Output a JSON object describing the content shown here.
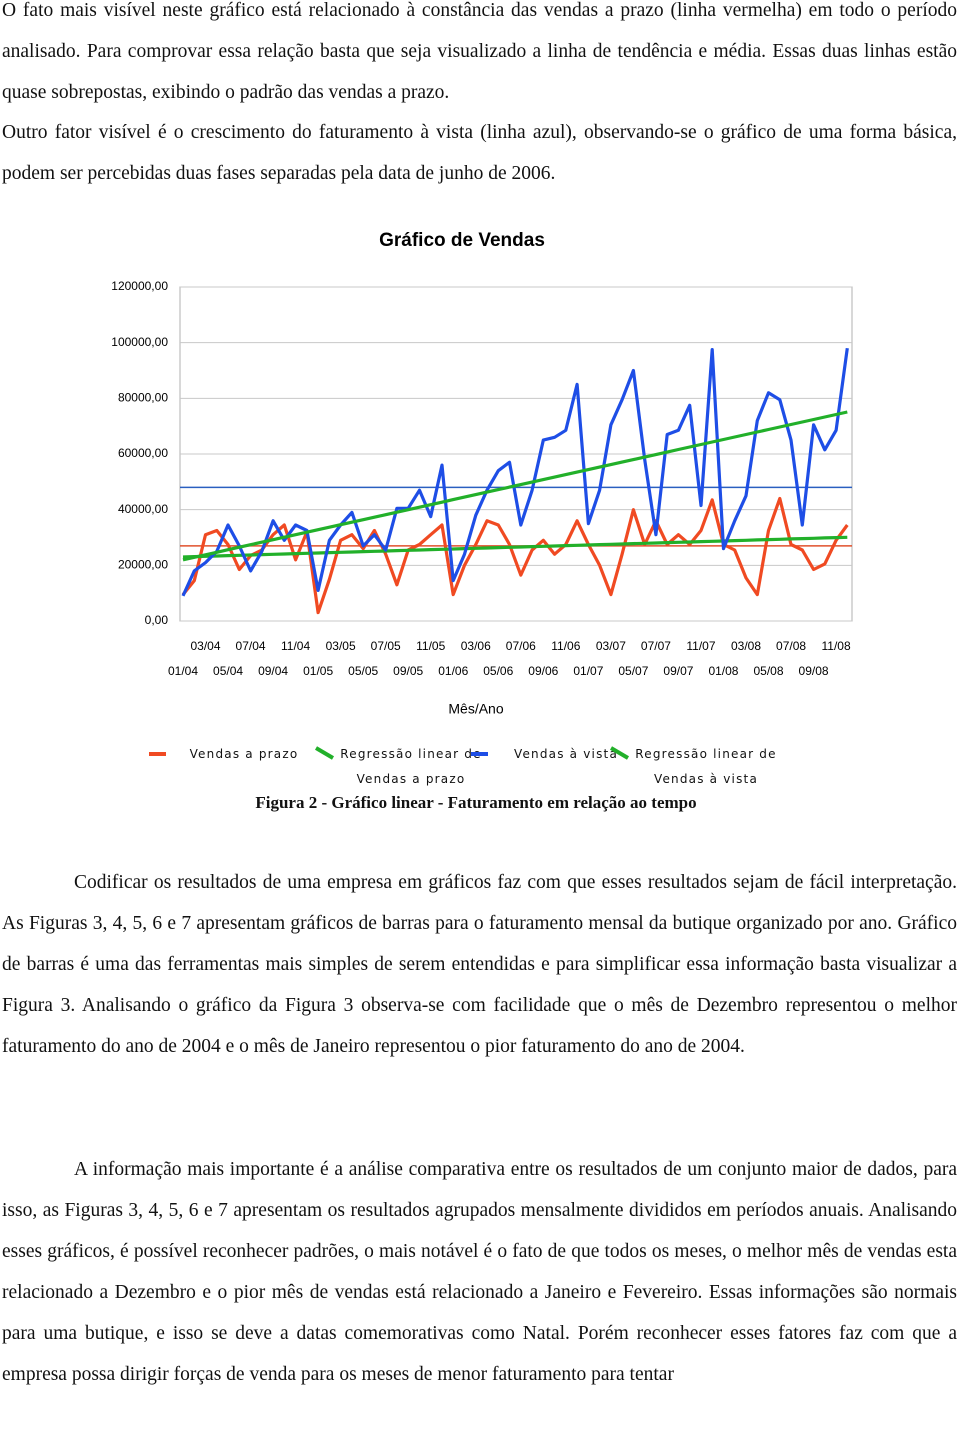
{
  "document": {
    "intro": [
      "O fato mais visível neste gráfico está relacionado à constância das vendas a prazo (linha vermelha) em todo o período analisado. Para comprovar essa relação basta que seja visualizado a linha de tendência e média. Essas duas linhas estão quase sobrepostas, exibindo o padrão das vendas a prazo.",
      "Outro fator visível é o crescimento do faturamento à vista (linha azul), observando-se o gráfico de uma forma básica, podem ser percebidas duas fases separadas pela data de junho de 2006."
    ],
    "caption": "Figura 2 - Gráfico linear - Faturamento em relação ao tempo",
    "paragraphs": [
      "Codificar os resultados de uma empresa em gráficos faz com que esses resultados sejam de fácil interpretação. As Figuras 3, 4, 5, 6 e 7 apresentam gráficos de barras para o faturamento mensal da butique organizado por ano. Gráfico de barras é uma das ferramentas mais simples de serem entendidas e para simplificar essa informação basta visualizar a Figura 3. Analisando o gráfico da Figura 3 observa-se com facilidade que o mês de Dezembro representou o melhor faturamento do ano de 2004 e o mês de Janeiro representou o pior faturamento do ano de 2004.",
      "A informação mais importante é a análise comparativa entre os resultados de um conjunto maior de dados, para isso, as Figuras 3, 4, 5, 6 e 7 apresentam os resultados agrupados mensalmente divididos em períodos anuais. Analisando esses gráficos, é possível reconhecer padrões, o mais notável é o fato de que todos os meses, o melhor mês de vendas esta relacionado a Dezembro e o pior mês de vendas está relacionado a Janeiro e Fevereiro. Essas informações são normais para uma butique, e isso se deve a datas comemorativas como Natal. Porém reconhecer esses fatores faz com que a empresa possa dirigir forças de venda para os meses de menor faturamento para tentar"
    ]
  },
  "chart_data": {
    "type": "line",
    "title": "Gráfico de Vendas",
    "x_label": "Mês/Ano",
    "categories": [
      "01/04",
      null,
      "03/04",
      null,
      "05/04",
      null,
      "07/04",
      null,
      "09/04",
      null,
      "11/04",
      null,
      "01/05",
      null,
      "03/05",
      null,
      "05/05",
      null,
      "07/05",
      null,
      "09/05",
      null,
      "11/05",
      null,
      "01/06",
      null,
      "03/06",
      null,
      "05/06",
      null,
      "07/06",
      null,
      "09/06",
      null,
      "11/06",
      null,
      "01/07",
      null,
      "03/07",
      null,
      "05/07",
      null,
      "07/07",
      null,
      "09/07",
      null,
      "11/07",
      null,
      "01/08",
      null,
      "03/08",
      null,
      "05/08",
      null,
      "07/08",
      null,
      "09/08",
      null,
      "11/08",
      null
    ],
    "ylim": [
      0,
      120000
    ],
    "yticks": [
      {
        "value": 0,
        "label": "0,00"
      },
      {
        "value": 20000,
        "label": "20000,00"
      },
      {
        "value": 40000,
        "label": "40000,00"
      },
      {
        "value": 60000,
        "label": "60000,00"
      },
      {
        "value": 80000,
        "label": "80000,00"
      },
      {
        "value": 100000,
        "label": "100000,00"
      },
      {
        "value": 120000,
        "label": "120000,00"
      }
    ],
    "grid": true,
    "reference_lines": [
      {
        "value": 48000,
        "color": "#2a5fc0"
      },
      {
        "value": 27000,
        "color": "#e0502c"
      }
    ],
    "series": [
      {
        "name": "Vendas a prazo",
        "color": "#f04a22",
        "values": [
          9500,
          14500,
          31000,
          32500,
          27500,
          18500,
          23500,
          25500,
          31000,
          34500,
          22000,
          32000,
          3000,
          15000,
          29000,
          31000,
          26000,
          32500,
          24000,
          13000,
          25500,
          27500,
          31000,
          34500,
          9500,
          20000,
          27500,
          36000,
          34500,
          27500,
          16500,
          25500,
          29000,
          24000,
          27500,
          36000,
          27500,
          20000,
          9500,
          24000,
          40000,
          27500,
          36000,
          27500,
          31000,
          27500,
          32500,
          43500,
          27500,
          25500,
          15500,
          9500,
          32500,
          44000,
          27500,
          25500,
          18500,
          20500,
          29000,
          34500
        ]
      },
      {
        "name": "Regressão linear de Vendas a prazo",
        "color": "#22b02a",
        "values": [
          23000,
          23120,
          23240,
          23360,
          23480,
          23600,
          23720,
          23840,
          23960,
          24080,
          24200,
          24320,
          24440,
          24560,
          24680,
          24800,
          24920,
          25040,
          25160,
          25280,
          25400,
          25520,
          25640,
          25760,
          25880,
          26000,
          26120,
          26240,
          26360,
          26480,
          26600,
          26720,
          26840,
          26960,
          27080,
          27200,
          27320,
          27440,
          27560,
          27680,
          27800,
          27920,
          28040,
          28160,
          28280,
          28400,
          28520,
          28640,
          28760,
          28880,
          29000,
          29120,
          29240,
          29360,
          29480,
          29600,
          29720,
          29840,
          29960,
          30080
        ]
      },
      {
        "name": "Vendas à vista",
        "color": "#1e4ee6",
        "values": [
          9000,
          18000,
          21000,
          25000,
          34500,
          27000,
          18000,
          25000,
          36000,
          29000,
          34500,
          32500,
          11000,
          29000,
          34500,
          39000,
          27000,
          31000,
          25500,
          40500,
          40500,
          47000,
          37500,
          56000,
          14500,
          24000,
          38000,
          47000,
          54000,
          57000,
          34500,
          47000,
          65000,
          66000,
          68500,
          85000,
          35000,
          47000,
          70500,
          79500,
          90000,
          58000,
          31000,
          67000,
          68500,
          77500,
          41500,
          97500,
          26000,
          36000,
          45000,
          72000,
          82000,
          79500,
          65000,
          34500,
          70500,
          61500,
          68500,
          98000
        ]
      },
      {
        "name": "Regressão linear de Vendas à vista",
        "color": "#22b02a",
        "values": [
          22000,
          22900,
          23800,
          24700,
          25600,
          26500,
          27400,
          28300,
          29200,
          30100,
          31000,
          31900,
          32800,
          33700,
          34600,
          35500,
          36400,
          37300,
          38200,
          39100,
          40000,
          40900,
          41800,
          42700,
          43600,
          44500,
          45400,
          46300,
          47200,
          48100,
          49000,
          49900,
          50800,
          51700,
          52600,
          53500,
          54400,
          55300,
          56200,
          57100,
          58000,
          58900,
          59800,
          60700,
          61600,
          62500,
          63400,
          64300,
          65200,
          66100,
          67000,
          67900,
          68800,
          69700,
          70600,
          71500,
          72400,
          73300,
          74200,
          75100
        ]
      }
    ]
  }
}
